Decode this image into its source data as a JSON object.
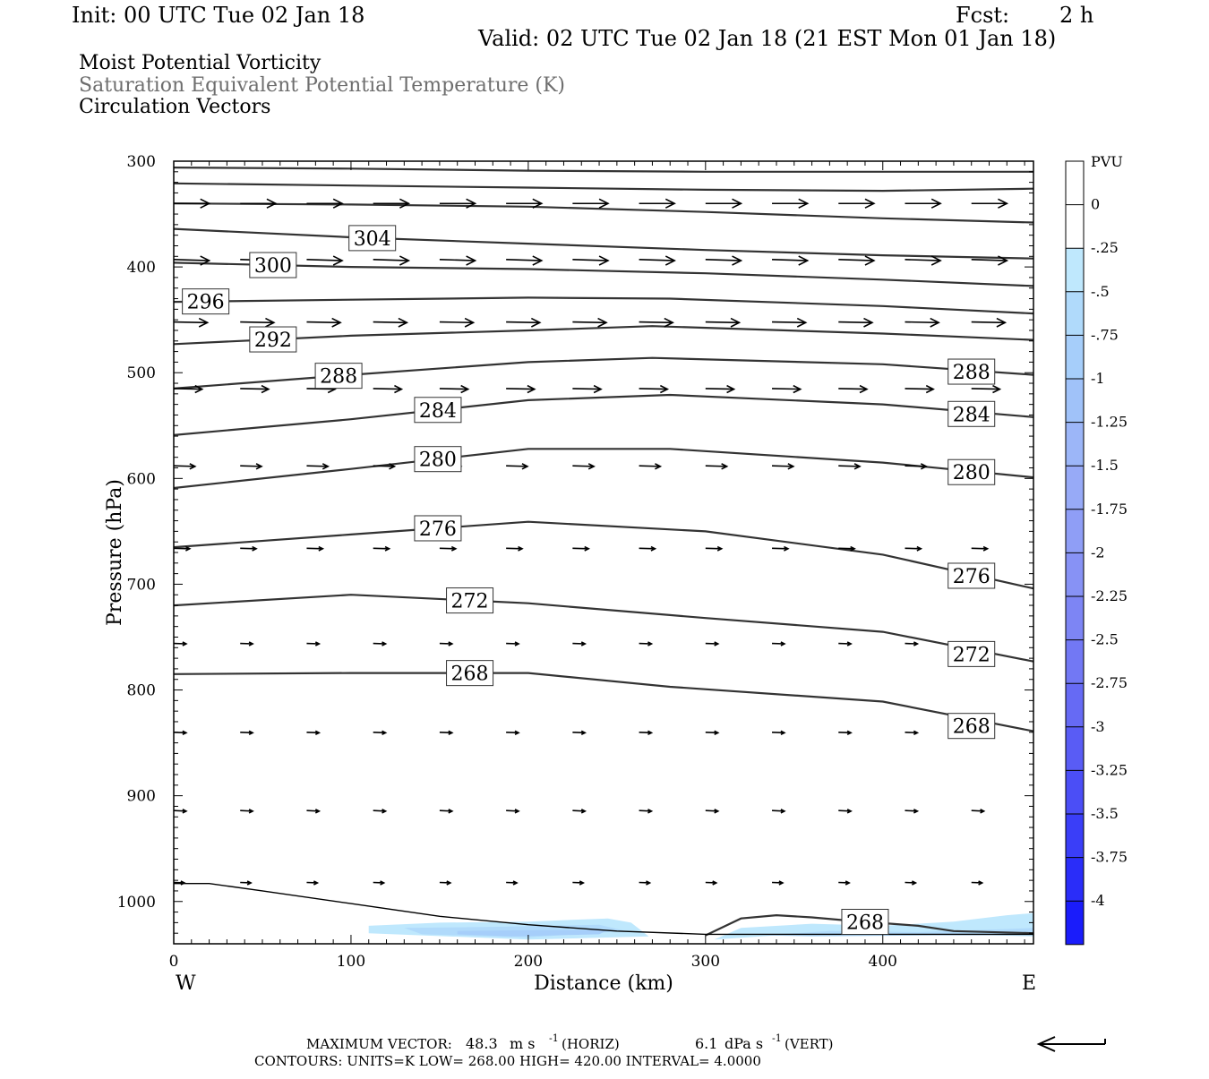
{
  "header": {
    "init": "Init: 00 UTC Tue 02 Jan 18",
    "fcst_label": "Fcst:",
    "fcst_value": "2 h",
    "valid": "Valid: 02 UTC Tue 02 Jan 18 (21 EST Mon 01 Jan 18)",
    "field1": "Moist Potential Vorticity",
    "field2": "Saturation Equivalent Potential Temperature (K)",
    "field3": "Circulation Vectors"
  },
  "footer": {
    "max_vector_label": "MAXIMUM VECTOR:",
    "horiz_value": "48.3",
    "horiz_unit": "m s",
    "horiz_exp": "-1",
    "horiz_tag": "(HORIZ)",
    "vert_value": "6.1",
    "vert_unit": "dPa s",
    "vert_exp": "-1",
    "vert_tag": "(VERT)",
    "contours_line": "CONTOURS: UNITS=K LOW= 268.00 HIGH= 420.00 INTERVAL= 4.0000"
  },
  "colors": {
    "contour": "#333333",
    "text": "#000000",
    "field2_text": "#6e6e6e",
    "axes": "#000000"
  },
  "chart_data": {
    "type": "cross-section",
    "xlabel": "Distance (km)",
    "ylabel": "Pressure (hPa)",
    "xlim": [
      0,
      485
    ],
    "ylim": [
      300,
      1040
    ],
    "x_ticks": [
      0,
      100,
      200,
      300,
      400
    ],
    "y_ticks": [
      300,
      400,
      500,
      600,
      700,
      800,
      900,
      1000
    ],
    "x_end_labels": {
      "left": "W",
      "right": "E"
    },
    "pressure_scale": "linear, inverted",
    "theta_es_contours": [
      {
        "label": "",
        "points": [
          [
            0,
            306
          ],
          [
            100,
            307
          ],
          [
            200,
            309
          ],
          [
            300,
            310
          ],
          [
            400,
            310
          ],
          [
            485,
            310
          ]
        ]
      },
      {
        "label": "",
        "points": [
          [
            0,
            321
          ],
          [
            100,
            323
          ],
          [
            200,
            325
          ],
          [
            300,
            327
          ],
          [
            400,
            328
          ],
          [
            485,
            326
          ]
        ]
      },
      {
        "label": "",
        "points": [
          [
            0,
            340
          ],
          [
            100,
            341
          ],
          [
            200,
            343
          ],
          [
            300,
            348
          ],
          [
            400,
            354
          ],
          [
            485,
            358
          ]
        ]
      },
      {
        "label": "304",
        "label_x": 112,
        "points": [
          [
            0,
            364
          ],
          [
            100,
            372
          ],
          [
            200,
            378
          ],
          [
            300,
            384
          ],
          [
            400,
            389
          ],
          [
            485,
            392
          ]
        ]
      },
      {
        "label": "300",
        "label_x": 56,
        "points": [
          [
            0,
            396
          ],
          [
            100,
            400
          ],
          [
            200,
            402
          ],
          [
            300,
            406
          ],
          [
            400,
            412
          ],
          [
            485,
            418
          ]
        ]
      },
      {
        "label": "296",
        "label_x": 18,
        "points": [
          [
            0,
            433
          ],
          [
            100,
            431
          ],
          [
            200,
            429
          ],
          [
            280,
            430
          ],
          [
            400,
            437
          ],
          [
            485,
            444
          ]
        ]
      },
      {
        "label": "292",
        "label_x": 56,
        "points": [
          [
            0,
            473
          ],
          [
            100,
            465
          ],
          [
            200,
            460
          ],
          [
            270,
            456
          ],
          [
            400,
            463
          ],
          [
            485,
            469
          ]
        ]
      },
      {
        "label": "288",
        "label_x": 93,
        "points": [
          [
            0,
            515
          ],
          [
            100,
            502
          ],
          [
            200,
            490
          ],
          [
            270,
            486
          ],
          [
            400,
            492
          ],
          [
            485,
            502
          ]
        ]
      },
      {
        "label": "284",
        "label_x": 149,
        "points": [
          [
            0,
            559
          ],
          [
            100,
            544
          ],
          [
            200,
            526
          ],
          [
            280,
            521
          ],
          [
            400,
            530
          ],
          [
            485,
            542
          ]
        ]
      },
      {
        "label": "280",
        "label_x": 149,
        "points": [
          [
            0,
            609
          ],
          [
            100,
            591
          ],
          [
            200,
            572
          ],
          [
            280,
            572
          ],
          [
            400,
            585
          ],
          [
            485,
            599
          ]
        ]
      },
      {
        "label": "276",
        "label_x": 149,
        "points": [
          [
            0,
            665
          ],
          [
            100,
            653
          ],
          [
            200,
            641
          ],
          [
            300,
            650
          ],
          [
            400,
            672
          ],
          [
            485,
            704
          ]
        ]
      },
      {
        "label": "272",
        "label_x": 167,
        "points": [
          [
            0,
            720
          ],
          [
            100,
            710
          ],
          [
            200,
            718
          ],
          [
            300,
            732
          ],
          [
            400,
            745
          ],
          [
            485,
            773
          ]
        ]
      },
      {
        "label": "268",
        "label_x": 167,
        "points": [
          [
            0,
            785
          ],
          [
            100,
            784
          ],
          [
            200,
            784
          ],
          [
            280,
            797
          ],
          [
            400,
            811
          ],
          [
            485,
            839
          ]
        ]
      },
      {
        "label": "268",
        "label_x": 390,
        "points": [
          [
            300,
            1032
          ],
          [
            320,
            1016
          ],
          [
            340,
            1013
          ],
          [
            360,
            1015
          ],
          [
            380,
            1018
          ],
          [
            420,
            1023
          ],
          [
            440,
            1028
          ],
          [
            485,
            1030
          ]
        ]
      }
    ],
    "contour_right_labels": [
      {
        "label": "288",
        "pressure": 499
      },
      {
        "label": "284",
        "pressure": 539
      },
      {
        "label": "280",
        "pressure": 594
      },
      {
        "label": "276",
        "pressure": 692
      },
      {
        "label": "272",
        "pressure": 766
      },
      {
        "label": "268",
        "pressure": 834
      }
    ],
    "vector_levels": [
      {
        "pressure": 340,
        "length_km": 20,
        "slope": 0
      },
      {
        "pressure": 393,
        "length_km": 20,
        "slope": 0.3
      },
      {
        "pressure": 452,
        "length_km": 19,
        "slope": 0.2
      },
      {
        "pressure": 515,
        "length_km": 16,
        "slope": 0.2
      },
      {
        "pressure": 588,
        "length_km": 12,
        "slope": 0.3
      },
      {
        "pressure": 666,
        "length_km": 9,
        "slope": 0.3
      },
      {
        "pressure": 756,
        "length_km": 7,
        "slope": 0.3
      },
      {
        "pressure": 840,
        "length_km": 7,
        "slope": 0.4
      },
      {
        "pressure": 914,
        "length_km": 7,
        "slope": 0.5
      },
      {
        "pressure": 982,
        "length_km": 6,
        "slope": 0.4
      }
    ],
    "mpv_colorbar": {
      "unit": "PVU",
      "labels": [
        "0",
        "-.25",
        "-.5",
        "-.75",
        "-1",
        "-1.25",
        "-1.5",
        "-1.75",
        "-2",
        "-2.25",
        "-2.5",
        "-2.75",
        "-3",
        "-3.25",
        "-3.5",
        "-3.75",
        "-4"
      ],
      "colors": [
        "#ffffff",
        "#ffffff",
        "#bfe8fd",
        "#b0dafb",
        "#a6cefa",
        "#a0c2f9",
        "#9cb6f8",
        "#97aaf7",
        "#8f9ef6",
        "#8792f5",
        "#7d85f4",
        "#7278f4",
        "#666af4",
        "#595cf5",
        "#4b4ef6",
        "#3a3ef8",
        "#2a2df9",
        "#1a1cfb"
      ]
    },
    "mpv_regions": [
      {
        "value": -0.5,
        "points": [
          [
            110,
            1023
          ],
          [
            150,
            1020
          ],
          [
            200,
            1019
          ],
          [
            245,
            1016
          ],
          [
            258,
            1020
          ],
          [
            268,
            1033
          ],
          [
            200,
            1036
          ],
          [
            110,
            1030
          ]
        ]
      },
      {
        "value": -0.75,
        "points": [
          [
            130,
            1025
          ],
          [
            180,
            1024
          ],
          [
            240,
            1022
          ],
          [
            255,
            1028
          ],
          [
            200,
            1034
          ],
          [
            140,
            1031
          ]
        ]
      },
      {
        "value": -1.0,
        "points": [
          [
            160,
            1028
          ],
          [
            210,
            1027
          ],
          [
            245,
            1027
          ],
          [
            240,
            1031
          ],
          [
            190,
            1033
          ],
          [
            160,
            1031
          ]
        ]
      },
      {
        "value": -0.5,
        "points": [
          [
            305,
            1036
          ],
          [
            320,
            1025
          ],
          [
            360,
            1021
          ],
          [
            400,
            1023
          ],
          [
            440,
            1019
          ],
          [
            470,
            1013
          ],
          [
            485,
            1011
          ],
          [
            485,
            1033
          ],
          [
            440,
            1031
          ],
          [
            400,
            1030
          ],
          [
            340,
            1032
          ],
          [
            305,
            1036
          ]
        ]
      },
      {
        "value": -0.75,
        "points": [
          [
            330,
            1032
          ],
          [
            370,
            1028
          ],
          [
            420,
            1029
          ],
          [
            470,
            1026
          ],
          [
            485,
            1025
          ],
          [
            485,
            1032
          ],
          [
            430,
            1032
          ],
          [
            360,
            1033
          ]
        ]
      }
    ],
    "terrain": [
      [
        0,
        983
      ],
      [
        20,
        983
      ],
      [
        50,
        990
      ],
      [
        100,
        1002
      ],
      [
        150,
        1014
      ],
      [
        200,
        1022
      ],
      [
        250,
        1028
      ],
      [
        300,
        1031
      ],
      [
        485,
        1031
      ]
    ]
  }
}
